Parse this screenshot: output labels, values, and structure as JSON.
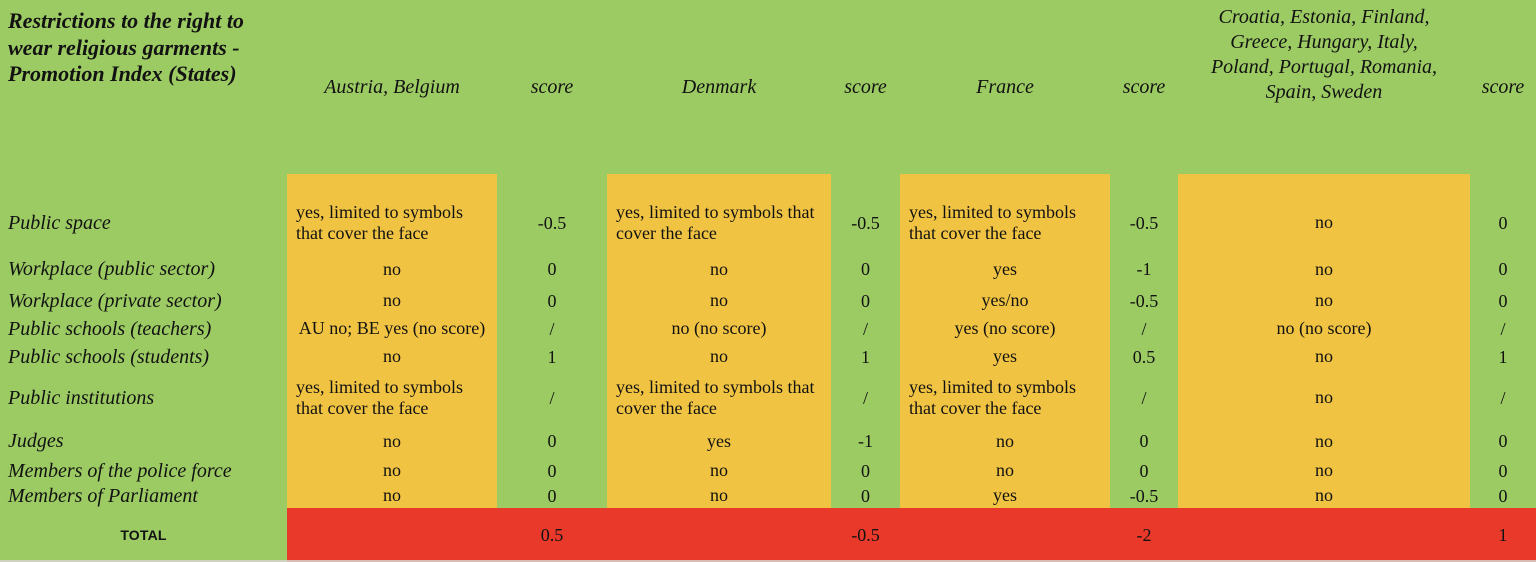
{
  "title": "Restrictions to the right to\nwear religious garments -\nPromotion Index (States)",
  "header": {
    "score_label": "score",
    "groups": [
      {
        "name": "Austria, Belgium"
      },
      {
        "name": "Denmark"
      },
      {
        "name": "France"
      },
      {
        "name": "Croatia, Estonia, Finland,\nGreece, Hungary, Italy,\nPoland, Portugal, Romania,\nSpain, Sweden"
      }
    ]
  },
  "rows": [
    {
      "label": "Public space",
      "values": [
        "yes, limited to symbols\nthat cover the face",
        "yes, limited to symbols that\ncover the face",
        "yes, limited to symbols\nthat cover the face",
        "no"
      ],
      "scores": [
        "-0.5",
        "-0.5",
        "-0.5",
        "0"
      ]
    },
    {
      "label": "Workplace (public sector)",
      "values": [
        "no",
        "no",
        "yes",
        "no"
      ],
      "scores": [
        "0",
        "0",
        "-1",
        "0"
      ]
    },
    {
      "label": "Workplace (private sector)",
      "values": [
        "no",
        "no",
        "yes/no",
        "no"
      ],
      "scores": [
        "0",
        "0",
        "-0.5",
        "0"
      ]
    },
    {
      "label": "Public schools (teachers)",
      "values": [
        "AU no; BE yes (no score)",
        "no (no score)",
        "yes (no score)",
        "no (no score)"
      ],
      "scores": [
        "/",
        "/",
        "/",
        "/"
      ]
    },
    {
      "label": "Public schools (students)",
      "values": [
        "no",
        "no",
        "yes",
        "no"
      ],
      "scores": [
        "1",
        "1",
        "0.5",
        "1"
      ]
    },
    {
      "label": "Public institutions",
      "values": [
        "yes, limited to symbols\nthat cover the face",
        "yes, limited to symbols that\ncover the face",
        "yes, limited to symbols\nthat cover the face",
        "no"
      ],
      "scores": [
        "/",
        "/",
        "/",
        "/"
      ]
    },
    {
      "label": "Judges",
      "values": [
        "no",
        "yes",
        "no",
        "no"
      ],
      "scores": [
        "0",
        "-1",
        "0",
        "0"
      ]
    },
    {
      "label": "Members of the police force",
      "values": [
        "no",
        "no",
        "no",
        "no"
      ],
      "scores": [
        "0",
        "0",
        "0",
        "0"
      ]
    },
    {
      "label": "Members of Parliament",
      "values": [
        "no",
        "no",
        "yes",
        "no"
      ],
      "scores": [
        "0",
        "0",
        "-0.5",
        "0"
      ]
    }
  ],
  "total": {
    "label": "TOTAL",
    "values": [
      "0.5",
      "-0.5",
      "-2",
      "1"
    ]
  },
  "colors": {
    "background_green": "#9ccb63",
    "cell_yellow": "#f0c342",
    "total_red": "#e8392b",
    "text": "#121212"
  },
  "chart_data": {
    "type": "table",
    "title": "Restrictions to the right to wear religious garments - Promotion Index (States)",
    "column_groups": [
      "Austria, Belgium",
      "Denmark",
      "France",
      "Croatia, Estonia, Finland, Greece, Hungary, Italy, Poland, Portugal, Romania, Spain, Sweden"
    ],
    "score_column_label": "score",
    "rows": [
      {
        "category": "Public space",
        "answers": [
          "yes, limited to symbols that cover the face",
          "yes, limited to symbols that cover the face",
          "yes, limited to symbols that cover the face",
          "no"
        ],
        "scores": [
          -0.5,
          -0.5,
          -0.5,
          0
        ]
      },
      {
        "category": "Workplace (public sector)",
        "answers": [
          "no",
          "no",
          "yes",
          "no"
        ],
        "scores": [
          0,
          0,
          -1,
          0
        ]
      },
      {
        "category": "Workplace (private sector)",
        "answers": [
          "no",
          "no",
          "yes/no",
          "no"
        ],
        "scores": [
          0,
          0,
          -0.5,
          0
        ]
      },
      {
        "category": "Public schools (teachers)",
        "answers": [
          "AU no; BE yes (no score)",
          "no (no score)",
          "yes (no score)",
          "no (no score)"
        ],
        "scores": [
          "/",
          "/",
          "/",
          "/"
        ]
      },
      {
        "category": "Public schools (students)",
        "answers": [
          "no",
          "no",
          "yes",
          "no"
        ],
        "scores": [
          1,
          1,
          0.5,
          1
        ]
      },
      {
        "category": "Public institutions",
        "answers": [
          "yes, limited to symbols that cover the face",
          "yes, limited to symbols that cover the face",
          "yes, limited to symbols that cover the face",
          "no"
        ],
        "scores": [
          "/",
          "/",
          "/",
          "/"
        ]
      },
      {
        "category": "Judges",
        "answers": [
          "no",
          "yes",
          "no",
          "no"
        ],
        "scores": [
          0,
          -1,
          0,
          0
        ]
      },
      {
        "category": "Members of the police force",
        "answers": [
          "no",
          "no",
          "no",
          "no"
        ],
        "scores": [
          0,
          0,
          0,
          0
        ]
      },
      {
        "category": "Members of Parliament",
        "answers": [
          "no",
          "no",
          "yes",
          "no"
        ],
        "scores": [
          0,
          0,
          -0.5,
          0
        ]
      }
    ],
    "totals": [
      0.5,
      -0.5,
      -2,
      1
    ]
  }
}
